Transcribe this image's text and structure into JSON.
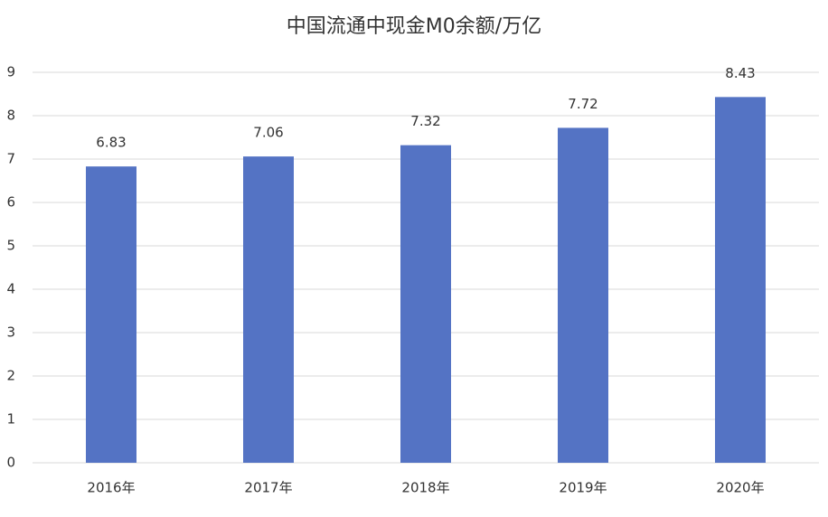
{
  "chart_data": {
    "type": "bar",
    "title": "中国流通中现金M0余额/万亿",
    "categories": [
      "2016年",
      "2017年",
      "2018年",
      "2019年",
      "2020年"
    ],
    "values": [
      6.83,
      7.06,
      7.32,
      7.72,
      8.43
    ],
    "color": "#5473c4",
    "ylim": [
      0,
      9
    ],
    "yticks": [
      0,
      1,
      2,
      3,
      4,
      5,
      6,
      7,
      8,
      9
    ],
    "grid": true
  }
}
